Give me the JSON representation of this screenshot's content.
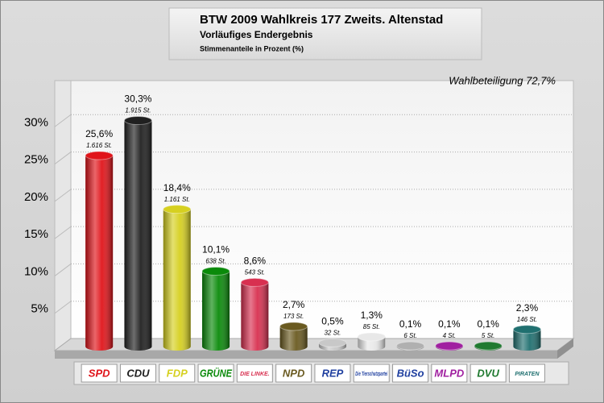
{
  "chart_data": {
    "type": "bar",
    "title": "BTW 2009 Wahlkreis 177 Zweits. Altenstad",
    "subtitle": "Vorläufiges Endergebnis",
    "caption": "Stimmenanteile in Prozent (%)",
    "annotation": "Wahlbeteiligung 72,7%",
    "categories": [
      "SPD",
      "CDU",
      "FDP",
      "GRÜNE",
      "DIE LINKE.",
      "NPD",
      "REP",
      "Die Tierschutzpartei",
      "BüSo",
      "MLPD",
      "DVU",
      "PIRATEN"
    ],
    "values": [
      25.6,
      30.3,
      18.4,
      10.1,
      8.6,
      2.7,
      0.5,
      1.3,
      0.1,
      0.1,
      0.1,
      2.3
    ],
    "value_labels": [
      "25,6%",
      "30,3%",
      "18,4%",
      "10,1%",
      "8,6%",
      "2,7%",
      "0,5%",
      "1,3%",
      "0,1%",
      "0,1%",
      "0,1%",
      "2,3%"
    ],
    "votes": [
      1616,
      1915,
      1161,
      638,
      543,
      173,
      32,
      85,
      6,
      4,
      5,
      146
    ],
    "votes_labels": [
      "1.616 St.",
      "1.915 St.",
      "1.161 St.",
      "638 St.",
      "543 St.",
      "173 St.",
      "32 St.",
      "85 St.",
      "6 St.",
      "4 St.",
      "5 St.",
      "146 St."
    ],
    "colors": [
      "#e0141a",
      "#202020",
      "#d6d020",
      "#0a8a0a",
      "#d83050",
      "#6a5a20",
      "#c8c8c8",
      "#e8e8e8",
      "#b0b0b0",
      "#a020a0",
      "#207a30",
      "#207070"
    ],
    "ylim": [
      0,
      35
    ],
    "yticks": [
      {
        "value": 5,
        "label": "5%"
      },
      {
        "value": 10,
        "label": "10%"
      },
      {
        "value": 15,
        "label": "15%"
      },
      {
        "value": 20,
        "label": "20%"
      },
      {
        "value": 25,
        "label": "25%"
      },
      {
        "value": 30,
        "label": "30%"
      }
    ],
    "grid": true
  }
}
